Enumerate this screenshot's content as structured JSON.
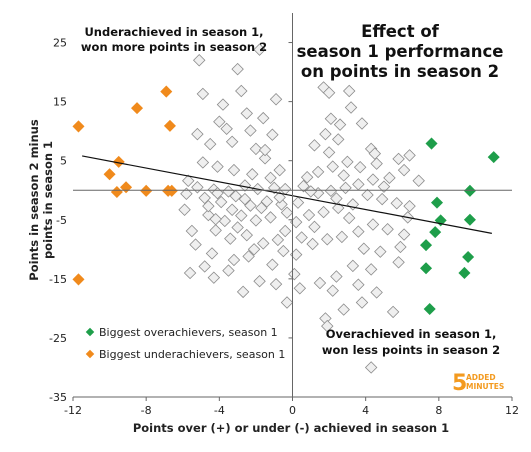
{
  "chart_data": {
    "type": "scatter",
    "title_lines": [
      "Effect of",
      "season 1 performance",
      "on points in season 2"
    ],
    "xlabel": "Points over (+) or under (-) achieved in season 1",
    "ylabel_lines": [
      "Points in season 2 minus",
      "points in season 1"
    ],
    "xlim": [
      -12,
      12
    ],
    "ylim": [
      -35,
      30
    ],
    "xticks": [
      -12,
      -8,
      -4,
      0,
      4,
      8,
      12
    ],
    "yticks": [
      -35,
      -25,
      -15,
      -5,
      5,
      15,
      25
    ],
    "xtick_labels": [
      "-12",
      "-8",
      "-4",
      "0",
      "4",
      "8",
      "12"
    ],
    "ytick_labels": [
      "-35",
      "-25",
      "-15",
      "-5",
      "5",
      "15",
      "25"
    ],
    "grid": false,
    "annotations": {
      "top_left": [
        "Underachieved in season 1,",
        "won more points in season 2"
      ],
      "bottom_right": [
        "Overachieved in season 1,",
        "won less points in season 2"
      ]
    },
    "legend_position": "bottom-left",
    "trendline": {
      "x": [
        -11.5,
        10.9
      ],
      "y": [
        5.8,
        -7.3
      ],
      "color": "#111111"
    },
    "series": [
      {
        "name": "Biggest overachievers, season 1",
        "color": "#1e9e4a",
        "points": [
          [
            7.6,
            7.9
          ],
          [
            11.0,
            5.6
          ],
          [
            7.9,
            -2.1
          ],
          [
            9.7,
            -0.1
          ],
          [
            7.8,
            -7.1
          ],
          [
            8.1,
            -5.1
          ],
          [
            7.3,
            -9.3
          ],
          [
            9.7,
            -5.0
          ],
          [
            9.6,
            -11.3
          ],
          [
            7.3,
            -13.2
          ],
          [
            9.4,
            -14.0
          ],
          [
            7.5,
            -20.1
          ]
        ]
      },
      {
        "name": "Biggest underachievers, season 1",
        "color": "#f08a1c",
        "points": [
          [
            -11.7,
            10.8
          ],
          [
            -8.5,
            13.9
          ],
          [
            -6.9,
            16.7
          ],
          [
            -6.7,
            10.9
          ],
          [
            -9.5,
            4.8
          ],
          [
            -10.0,
            2.7
          ],
          [
            -9.1,
            0.5
          ],
          [
            -9.6,
            -0.3
          ],
          [
            -8.0,
            -0.1
          ],
          [
            -6.8,
            -0.1
          ],
          [
            -6.6,
            -0.1
          ],
          [
            -11.7,
            -15.1
          ]
        ]
      },
      {
        "name": "",
        "color": "#bfbfbf",
        "points": [
          [
            -5.1,
            22.0
          ],
          [
            -1.8,
            23.8
          ],
          [
            -3.0,
            20.5
          ],
          [
            -2.5,
            13.0
          ],
          [
            -1.6,
            12.2
          ],
          [
            -2.3,
            10.1
          ],
          [
            -4.0,
            11.6
          ],
          [
            -3.6,
            10.4
          ],
          [
            -5.2,
            9.5
          ],
          [
            -4.5,
            7.8
          ],
          [
            -3.3,
            8.2
          ],
          [
            -1.1,
            9.4
          ],
          [
            -2.0,
            7.0
          ],
          [
            -4.9,
            4.7
          ],
          [
            -4.1,
            4.0
          ],
          [
            -3.2,
            3.4
          ],
          [
            -2.2,
            2.7
          ],
          [
            -1.2,
            2.1
          ],
          [
            -0.7,
            3.4
          ],
          [
            -1.5,
            5.4
          ],
          [
            -5.7,
            1.6
          ],
          [
            -5.2,
            0.5
          ],
          [
            -4.3,
            0.1
          ],
          [
            -3.5,
            -0.2
          ],
          [
            -2.6,
            0.8
          ],
          [
            -1.9,
            0.2
          ],
          [
            -1.0,
            0.4
          ],
          [
            -0.4,
            0.2
          ],
          [
            -5.8,
            -0.6
          ],
          [
            -4.8,
            -1.3
          ],
          [
            -3.9,
            -2.0
          ],
          [
            -3.1,
            -1.0
          ],
          [
            -2.3,
            -2.6
          ],
          [
            -1.4,
            -1.9
          ],
          [
            -0.6,
            -2.4
          ],
          [
            -5.9,
            -3.3
          ],
          [
            -4.6,
            -4.2
          ],
          [
            -3.7,
            -5.2
          ],
          [
            -2.8,
            -4.3
          ],
          [
            -2.0,
            -5.1
          ],
          [
            -1.2,
            -4.6
          ],
          [
            -0.3,
            -3.8
          ],
          [
            -4.2,
            -6.8
          ],
          [
            -3.4,
            -8.2
          ],
          [
            -2.5,
            -7.6
          ],
          [
            -1.6,
            -9.0
          ],
          [
            -0.8,
            -8.4
          ],
          [
            -4.4,
            -10.7
          ],
          [
            -3.2,
            -11.8
          ],
          [
            -2.4,
            -11.2
          ],
          [
            -1.1,
            -12.6
          ],
          [
            -0.5,
            -10.3
          ],
          [
            -5.6,
            -14.0
          ],
          [
            -4.3,
            -14.8
          ],
          [
            -3.5,
            -13.6
          ],
          [
            -1.8,
            -15.4
          ],
          [
            -0.9,
            -15.9
          ],
          [
            -0.3,
            -19.0
          ],
          [
            -2.7,
            -17.2
          ],
          [
            -4.8,
            -12.9
          ],
          [
            -5.3,
            -9.2
          ],
          [
            -4.6,
            -2.7
          ],
          [
            -3.0,
            -6.3
          ],
          [
            -2.1,
            -10.0
          ],
          [
            -0.4,
            -6.9
          ],
          [
            -1.5,
            6.8
          ],
          [
            -3.8,
            14.5
          ],
          [
            -4.9,
            16.3
          ],
          [
            -2.8,
            16.8
          ],
          [
            -0.9,
            15.4
          ],
          [
            -4.2,
            -4.9
          ],
          [
            -2.6,
            -1.5
          ],
          [
            -5.5,
            -6.9
          ],
          [
            -4.1,
            -0.5
          ],
          [
            -3.3,
            -3.3
          ],
          [
            -1.7,
            -3.0
          ],
          [
            -0.7,
            -1.2
          ],
          [
            1.7,
            17.4
          ],
          [
            2.0,
            16.5
          ],
          [
            3.1,
            16.8
          ],
          [
            2.1,
            12.1
          ],
          [
            2.6,
            11.1
          ],
          [
            1.8,
            9.5
          ],
          [
            3.8,
            11.3
          ],
          [
            2.5,
            8.6
          ],
          [
            4.3,
            7.0
          ],
          [
            1.2,
            7.6
          ],
          [
            4.5,
            6.2
          ],
          [
            3.0,
            4.8
          ],
          [
            2.2,
            4.0
          ],
          [
            1.4,
            3.1
          ],
          [
            0.8,
            2.2
          ],
          [
            3.7,
            3.9
          ],
          [
            4.6,
            4.5
          ],
          [
            5.8,
            5.3
          ],
          [
            6.4,
            5.9
          ],
          [
            6.1,
            3.4
          ],
          [
            5.3,
            2.1
          ],
          [
            4.4,
            1.8
          ],
          [
            3.6,
            1.0
          ],
          [
            2.9,
            0.4
          ],
          [
            2.1,
            -0.1
          ],
          [
            1.4,
            -0.5
          ],
          [
            0.6,
            0.7
          ],
          [
            4.1,
            -0.8
          ],
          [
            4.9,
            -1.5
          ],
          [
            5.7,
            -2.2
          ],
          [
            6.4,
            -2.7
          ],
          [
            3.3,
            -2.4
          ],
          [
            2.5,
            -3.0
          ],
          [
            1.7,
            -3.7
          ],
          [
            0.9,
            -4.2
          ],
          [
            0.3,
            -2.1
          ],
          [
            4.4,
            -5.8
          ],
          [
            5.2,
            -6.6
          ],
          [
            6.1,
            -7.5
          ],
          [
            3.6,
            -7.0
          ],
          [
            2.7,
            -7.9
          ],
          [
            1.9,
            -8.3
          ],
          [
            1.1,
            -9.1
          ],
          [
            0.2,
            -10.9
          ],
          [
            3.9,
            -9.9
          ],
          [
            4.8,
            -10.4
          ],
          [
            5.8,
            -12.2
          ],
          [
            4.3,
            -13.4
          ],
          [
            3.3,
            -12.8
          ],
          [
            2.4,
            -14.6
          ],
          [
            1.5,
            -15.7
          ],
          [
            3.6,
            -16.0
          ],
          [
            2.2,
            -17.0
          ],
          [
            4.6,
            -17.3
          ],
          [
            3.8,
            -19.0
          ],
          [
            2.8,
            -20.2
          ],
          [
            1.8,
            -21.7
          ],
          [
            1.9,
            -23.0
          ],
          [
            4.3,
            -30.0
          ],
          [
            0.2,
            -5.4
          ],
          [
            0.1,
            -14.2
          ],
          [
            1.0,
            -0.2
          ],
          [
            2.4,
            -1.4
          ],
          [
            5.0,
            0.6
          ],
          [
            6.9,
            1.6
          ],
          [
            6.3,
            -4.6
          ],
          [
            5.9,
            -9.6
          ],
          [
            3.1,
            -4.7
          ],
          [
            1.2,
            -6.2
          ],
          [
            0.5,
            -8.0
          ],
          [
            2.8,
            2.5
          ],
          [
            2.0,
            6.4
          ],
          [
            3.2,
            14.0
          ],
          [
            0.4,
            -16.6
          ],
          [
            5.5,
            -20.6
          ]
        ]
      }
    ]
  },
  "legend": {
    "overachievers_label": "Biggest overachievers, season 1",
    "underachievers_label": "Biggest underachievers, season 1"
  },
  "logo": {
    "number": "5",
    "line1": "ADDED",
    "line2": "MINUTES"
  }
}
